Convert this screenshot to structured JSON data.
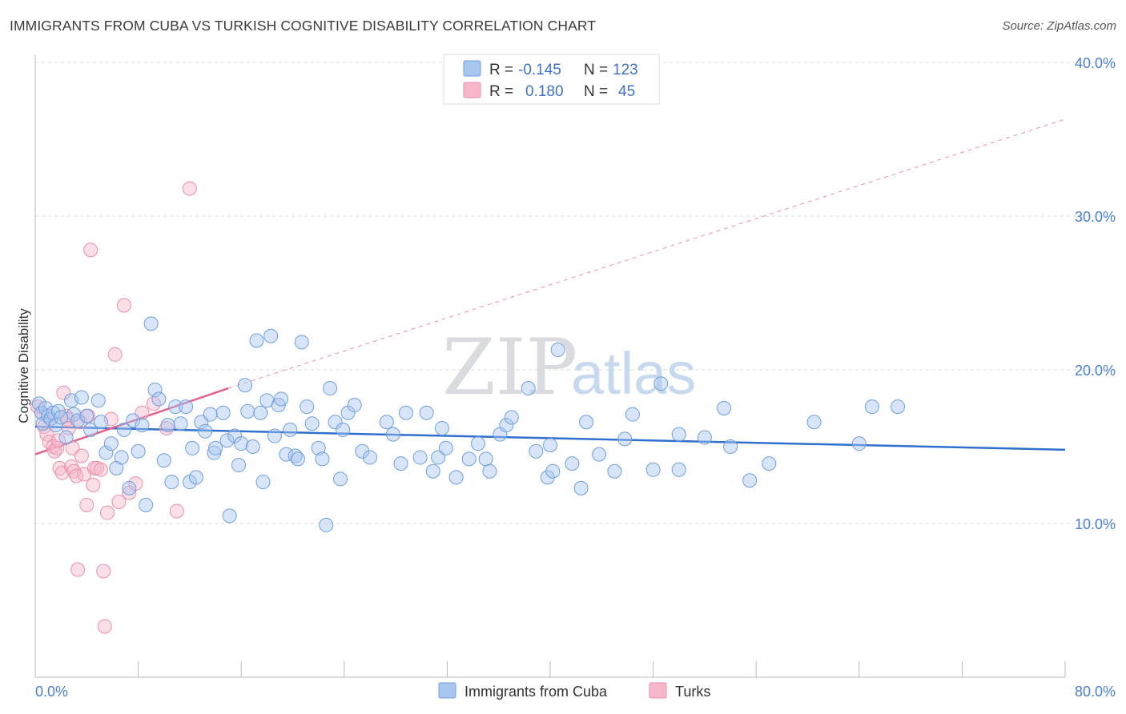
{
  "header": {
    "title": "IMMIGRANTS FROM CUBA VS TURKISH COGNITIVE DISABILITY CORRELATION CHART",
    "source": "Source: ZipAtlas.com"
  },
  "watermark": {
    "zip": "ZIP",
    "atlas": "atlas"
  },
  "stats": {
    "cuba": {
      "r_label": "R =",
      "r_value": "-0.145",
      "n_label": "N =",
      "n_value": "123"
    },
    "turks": {
      "r_label": "R =",
      "r_value": "0.180",
      "n_label": "N =",
      "n_value": "45"
    }
  },
  "colors": {
    "cuba_fill": "#a9c6ef",
    "cuba_stroke": "#6e9fe0",
    "cuba_line": "#2f6fcd",
    "turks_fill": "#f5b7c9",
    "turks_stroke": "#ec8fab",
    "turks_line": "#e5608a",
    "grid": "#d8d8d8",
    "axis_text": "#4a7fd0"
  },
  "chart_data": {
    "type": "scatter",
    "title": "IMMIGRANTS FROM CUBA VS TURKISH COGNITIVE DISABILITY CORRELATION CHART",
    "xlabel": "",
    "ylabel": "Cognitive Disability",
    "xlim": [
      0,
      80
    ],
    "ylim": [
      0,
      40
    ],
    "x_tick_labels": [
      "0.0%",
      "80.0%"
    ],
    "y_ticks": [
      10,
      20,
      30,
      40
    ],
    "y_tick_labels": [
      "10.0%",
      "20.0%",
      "30.0%",
      "40.0%"
    ],
    "grid": true,
    "legend": [
      "Immigrants from Cuba",
      "Turks"
    ],
    "series": [
      {
        "name": "Immigrants from Cuba",
        "r": -0.145,
        "n": 123,
        "trend": {
          "x": [
            0,
            80
          ],
          "y": [
            16.3,
            14.8
          ],
          "style": "solid"
        },
        "points": [
          [
            0.3,
            17.8
          ],
          [
            0.5,
            17.2
          ],
          [
            0.6,
            16.5
          ],
          [
            0.8,
            17.5
          ],
          [
            1.0,
            17.0
          ],
          [
            1.2,
            16.8
          ],
          [
            1.4,
            17.2
          ],
          [
            1.6,
            16.4
          ],
          [
            1.8,
            17.3
          ],
          [
            2.0,
            16.9
          ],
          [
            2.4,
            15.6
          ],
          [
            2.8,
            18.0
          ],
          [
            3.0,
            17.1
          ],
          [
            3.3,
            16.7
          ],
          [
            3.6,
            18.2
          ],
          [
            4.0,
            17.0
          ],
          [
            4.3,
            16.1
          ],
          [
            4.9,
            18.0
          ],
          [
            5.1,
            16.6
          ],
          [
            5.5,
            14.6
          ],
          [
            5.9,
            15.2
          ],
          [
            6.3,
            13.6
          ],
          [
            6.7,
            14.3
          ],
          [
            6.9,
            16.1
          ],
          [
            7.3,
            12.3
          ],
          [
            7.6,
            16.7
          ],
          [
            8.0,
            14.7
          ],
          [
            8.3,
            16.4
          ],
          [
            8.6,
            11.2
          ],
          [
            9.0,
            23.0
          ],
          [
            9.3,
            18.7
          ],
          [
            9.6,
            18.1
          ],
          [
            10.0,
            14.1
          ],
          [
            10.3,
            16.4
          ],
          [
            10.6,
            12.7
          ],
          [
            10.9,
            17.6
          ],
          [
            11.3,
            16.5
          ],
          [
            11.7,
            17.6
          ],
          [
            12.0,
            12.7
          ],
          [
            12.2,
            14.9
          ],
          [
            12.5,
            13.0
          ],
          [
            12.9,
            16.6
          ],
          [
            13.2,
            16.0
          ],
          [
            13.6,
            17.1
          ],
          [
            13.9,
            14.6
          ],
          [
            14.0,
            14.9
          ],
          [
            14.6,
            17.2
          ],
          [
            14.9,
            15.4
          ],
          [
            15.1,
            10.5
          ],
          [
            15.5,
            15.7
          ],
          [
            15.8,
            13.8
          ],
          [
            16.0,
            15.2
          ],
          [
            16.3,
            19.0
          ],
          [
            16.5,
            17.3
          ],
          [
            16.9,
            15.0
          ],
          [
            17.2,
            21.9
          ],
          [
            17.5,
            17.2
          ],
          [
            17.7,
            12.7
          ],
          [
            18.0,
            18.0
          ],
          [
            18.3,
            22.2
          ],
          [
            18.6,
            15.7
          ],
          [
            18.9,
            17.7
          ],
          [
            19.1,
            18.1
          ],
          [
            19.5,
            14.5
          ],
          [
            19.8,
            16.1
          ],
          [
            20.2,
            14.4
          ],
          [
            20.4,
            14.2
          ],
          [
            20.7,
            21.8
          ],
          [
            21.1,
            17.6
          ],
          [
            21.5,
            16.5
          ],
          [
            22.0,
            14.9
          ],
          [
            22.3,
            14.2
          ],
          [
            22.6,
            9.9
          ],
          [
            22.9,
            18.8
          ],
          [
            23.3,
            16.6
          ],
          [
            23.7,
            12.9
          ],
          [
            23.9,
            16.1
          ],
          [
            24.3,
            17.2
          ],
          [
            24.8,
            17.7
          ],
          [
            25.4,
            14.7
          ],
          [
            26.0,
            14.3
          ],
          [
            27.3,
            16.6
          ],
          [
            27.8,
            15.8
          ],
          [
            28.4,
            13.9
          ],
          [
            28.8,
            17.2
          ],
          [
            29.9,
            14.3
          ],
          [
            30.4,
            17.2
          ],
          [
            30.9,
            13.4
          ],
          [
            31.3,
            14.3
          ],
          [
            31.6,
            16.2
          ],
          [
            31.9,
            14.9
          ],
          [
            32.7,
            13.0
          ],
          [
            33.7,
            14.2
          ],
          [
            34.4,
            15.2
          ],
          [
            35.0,
            14.2
          ],
          [
            35.3,
            13.4
          ],
          [
            36.1,
            15.8
          ],
          [
            36.6,
            16.4
          ],
          [
            37.0,
            16.9
          ],
          [
            38.3,
            18.8
          ],
          [
            38.9,
            14.7
          ],
          [
            39.8,
            13.0
          ],
          [
            40.2,
            13.4
          ],
          [
            40.0,
            15.1
          ],
          [
            40.6,
            21.3
          ],
          [
            41.7,
            13.9
          ],
          [
            42.4,
            12.3
          ],
          [
            42.8,
            16.6
          ],
          [
            43.8,
            14.5
          ],
          [
            45.0,
            13.4
          ],
          [
            45.8,
            15.5
          ],
          [
            46.4,
            17.1
          ],
          [
            48.0,
            13.5
          ],
          [
            48.6,
            19.1
          ],
          [
            50.0,
            15.8
          ],
          [
            50.0,
            13.5
          ],
          [
            52.0,
            15.6
          ],
          [
            53.5,
            17.5
          ],
          [
            54.0,
            15.0
          ],
          [
            55.5,
            12.8
          ],
          [
            57.0,
            13.9
          ],
          [
            60.5,
            16.6
          ],
          [
            64.0,
            15.2
          ],
          [
            65.0,
            17.6
          ],
          [
            67.0,
            17.6
          ]
        ]
      },
      {
        "name": "Turks",
        "r": 0.18,
        "n": 45,
        "trend_solid": {
          "x": [
            0,
            15
          ],
          "y": [
            14.5,
            18.8
          ]
        },
        "trend_dashed": {
          "x": [
            15,
            80
          ],
          "y": [
            18.8,
            36.3
          ]
        },
        "points": [
          [
            0.2,
            17.6
          ],
          [
            0.5,
            17.2
          ],
          [
            0.7,
            16.3
          ],
          [
            0.9,
            15.8
          ],
          [
            1.1,
            15.3
          ],
          [
            1.2,
            16.8
          ],
          [
            1.4,
            15.0
          ],
          [
            1.5,
            14.7
          ],
          [
            1.7,
            14.9
          ],
          [
            1.8,
            15.4
          ],
          [
            1.9,
            13.6
          ],
          [
            2.1,
            13.3
          ],
          [
            2.2,
            18.5
          ],
          [
            2.4,
            17.0
          ],
          [
            2.5,
            16.8
          ],
          [
            2.6,
            16.2
          ],
          [
            2.8,
            13.7
          ],
          [
            2.9,
            14.9
          ],
          [
            3.0,
            13.4
          ],
          [
            3.2,
            13.1
          ],
          [
            3.3,
            7.0
          ],
          [
            3.5,
            16.6
          ],
          [
            3.6,
            14.4
          ],
          [
            3.8,
            13.2
          ],
          [
            4.0,
            11.2
          ],
          [
            4.1,
            17.0
          ],
          [
            4.3,
            27.8
          ],
          [
            4.5,
            12.5
          ],
          [
            4.6,
            13.6
          ],
          [
            4.8,
            13.6
          ],
          [
            5.1,
            13.5
          ],
          [
            5.3,
            6.9
          ],
          [
            5.4,
            3.3
          ],
          [
            5.6,
            10.7
          ],
          [
            5.9,
            16.8
          ],
          [
            6.2,
            21.0
          ],
          [
            6.5,
            11.4
          ],
          [
            6.9,
            24.2
          ],
          [
            7.3,
            12.0
          ],
          [
            7.8,
            12.6
          ],
          [
            8.3,
            17.2
          ],
          [
            9.2,
            17.8
          ],
          [
            10.2,
            16.2
          ],
          [
            11.0,
            10.8
          ],
          [
            12.0,
            31.8
          ]
        ]
      }
    ]
  }
}
